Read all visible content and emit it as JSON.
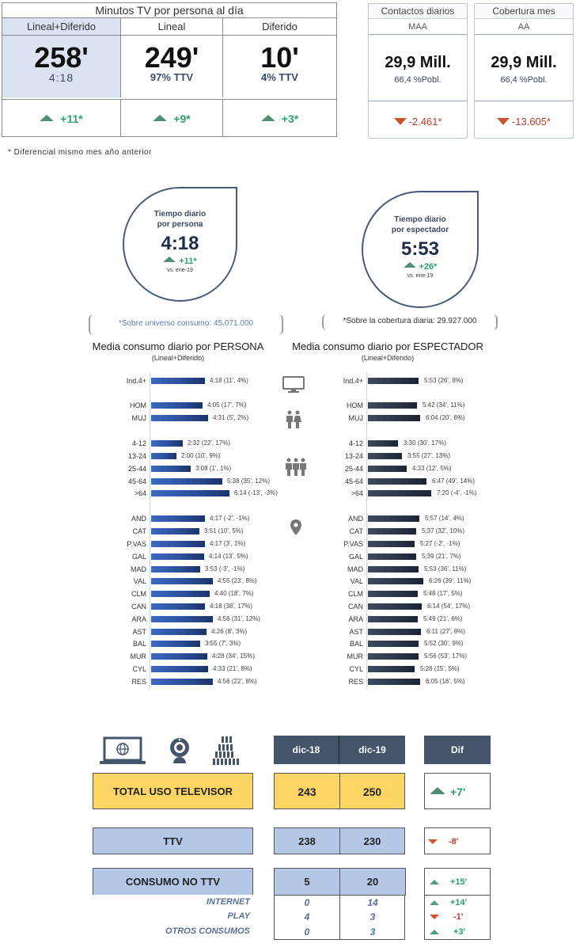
{
  "minutos_table": {
    "title": "Minutos TV por persona al día",
    "columns": [
      {
        "header": "Lineal+Diferido",
        "value": "258'",
        "sub": "4:18",
        "dif": "+11*",
        "dir": "up"
      },
      {
        "header": "Lineal",
        "value": "249'",
        "sub": "97% TTV",
        "dif": "+9*",
        "dir": "up"
      },
      {
        "header": "Diferido",
        "value": "10'",
        "sub": "4% TTV",
        "dif": "+3*",
        "dir": "up"
      }
    ]
  },
  "kpis": [
    {
      "title": "Contactos diarios",
      "subtitle": "MAA",
      "value": "29,9 Mill.",
      "sub": "66,4 %Pobl.",
      "dif": "-2.461*",
      "dir": "down"
    },
    {
      "title": "Cobertura mes",
      "subtitle": "AA",
      "value": "29,9 Mill.",
      "sub": "66,4 %Pobl.",
      "dif": "-13.605*",
      "dir": "down"
    }
  ],
  "footnote": "* Diferencial mismo mes año anterior",
  "drops": [
    {
      "title1": "Tiempo diario",
      "title2": "por persona",
      "value": "4:18",
      "dif": "+11*",
      "vs": "vs. ene-19",
      "note": "*Sobre universo consumo: 45.071.000"
    },
    {
      "title1": "Tiempo diario",
      "title2": "por espectador",
      "value": "5:53",
      "dif": "+26*",
      "vs": "vs. ene-19",
      "note": "*Sobre la cobertura diaria: 29.927.000"
    }
  ],
  "chart_titles": {
    "left": "Media consumo diario por PERSONA",
    "left_sub": "(Lineal+Diferido)",
    "right": "Media consumo diario por ESPECTADOR",
    "right_sub": "(Lineal+Diferido)"
  },
  "chart_data": [
    {
      "type": "bar",
      "orientation": "horizontal",
      "title": "Media consumo diario por PERSONA (Lineal+Diferido)",
      "categories": [
        "Ind.4+",
        "HOM",
        "MUJ",
        "4-12",
        "13-24",
        "25-44",
        "45-64",
        ">64",
        "AND",
        "CAT",
        "P.VAS",
        "GAL",
        "MAD",
        "VAL",
        "CLM",
        "CAN",
        "ARA",
        "AST",
        "BAL",
        "MUR",
        "CYL",
        "RES"
      ],
      "values_minutes": [
        258,
        245,
        271,
        152,
        120,
        188,
        338,
        374,
        257,
        231,
        257,
        254,
        233,
        295,
        280,
        258,
        296,
        266,
        235,
        268,
        273,
        296
      ],
      "labels": [
        "4:18 (11', 4%)",
        "4:05 (17', 7%)",
        "4:31 (5', 2%)",
        "2:32 (22', 17%)",
        "2:00 (10', 9%)",
        "3:08 (1', 1%)",
        "5:38 (35', 12%)",
        "6:14 (-13', -3%)",
        "4:17 (-2', -1%)",
        "3:51 (10', 5%)",
        "4:17 (3', 1%)",
        "4:14 (13', 5%)",
        "3:53 (-3', -1%)",
        "4:55 (23', 8%)",
        "4:40 (18', 7%)",
        "4:18 (38', 17%)",
        "4:56 (31', 12%)",
        "4:26 (8', 3%)",
        "3:55 (7', 3%)",
        "4:28 (34', 15%)",
        "4:33 (21', 8%)",
        "4:56 (22', 8%)"
      ]
    },
    {
      "type": "bar",
      "orientation": "horizontal",
      "title": "Media consumo diario por ESPECTADOR (Lineal+Diferido)",
      "categories": [
        "Ind.4+",
        "HOM",
        "MUJ",
        "4-12",
        "13-24",
        "25-44",
        "45-64",
        ">64",
        "AND",
        "CAT",
        "P.VAS",
        "GAL",
        "MAD",
        "VAL",
        "CLM",
        "CAN",
        "ARA",
        "AST",
        "BAL",
        "MUR",
        "CYL",
        "RES"
      ],
      "values_minutes": [
        353,
        342,
        364,
        210,
        235,
        273,
        407,
        440,
        357,
        337,
        327,
        339,
        353,
        386,
        348,
        374,
        349,
        371,
        352,
        356,
        328,
        365
      ],
      "labels": [
        "5:53 (26', 8%)",
        "5:42 (34', 11%)",
        "6:04 (20', 6%)",
        "3:30 (30', 17%)",
        "3:55 (27', 13%)",
        "4:33 (12', 5%)",
        "6:47 (49', 14%)",
        "7:20 (-4', -1%)",
        "5:57 (14', 4%)",
        "5:37 (32', 10%)",
        "5:27 (-2', -1%)",
        "5:39 (21', 7%)",
        "5:53 (36', 11%)",
        "6:26 (39', 11%)",
        "5:48 (17', 5%)",
        "6:14 (54', 17%)",
        "5:49 (21', 6%)",
        "6:11 (27', 8%)",
        "5:52 (30', 9%)",
        "5:56 (53', 17%)",
        "5:28 (15', 5%)",
        "6:05 (16', 5%)"
      ]
    },
    {
      "type": "table",
      "title": "Uso del televisor",
      "columns": [
        "",
        "dic-18",
        "dic-19",
        "Dif"
      ],
      "rows": [
        [
          "TOTAL USO TELEVISOR",
          243,
          250,
          "+7'"
        ],
        [
          "TTV",
          238,
          230,
          "-8'"
        ],
        [
          "CONSUMO NO TTV",
          5,
          20,
          "+15'"
        ],
        [
          "INTERNET",
          0,
          14,
          "+14'"
        ],
        [
          "PLAY",
          4,
          3,
          "-1'"
        ],
        [
          "OTROS CONSUMOS",
          0,
          3,
          "+3'"
        ]
      ]
    }
  ],
  "bottom_table": {
    "headers": {
      "c1": "dic-18",
      "c2": "dic-19",
      "dif": "Dif"
    },
    "total": {
      "label": "TOTAL USO TELEVISOR",
      "c1": "243",
      "c2": "250",
      "dif": "+7'"
    },
    "ttv": {
      "label": "TTV",
      "c1": "238",
      "c2": "230",
      "dif": "-8'"
    },
    "no_ttv": {
      "label": "CONSUMO NO TTV",
      "c1": "5",
      "c2": "20",
      "dif": "+15'"
    },
    "sub": [
      {
        "label": "INTERNET",
        "c1": "0",
        "c2": "14",
        "dif": "+14'",
        "dir": "up"
      },
      {
        "label": "PLAY",
        "c1": "4",
        "c2": "3",
        "dif": "-1'",
        "dir": "down"
      },
      {
        "label": "OTROS CONSUMOS",
        "c1": "0",
        "c2": "3",
        "dif": "+3'",
        "dir": "up"
      }
    ]
  },
  "icons": [
    "tv-icon",
    "couple-icon",
    "group-icon",
    "location-pin-icon",
    "laptop-globe-icon",
    "webcam-icon",
    "crowd-icon"
  ]
}
